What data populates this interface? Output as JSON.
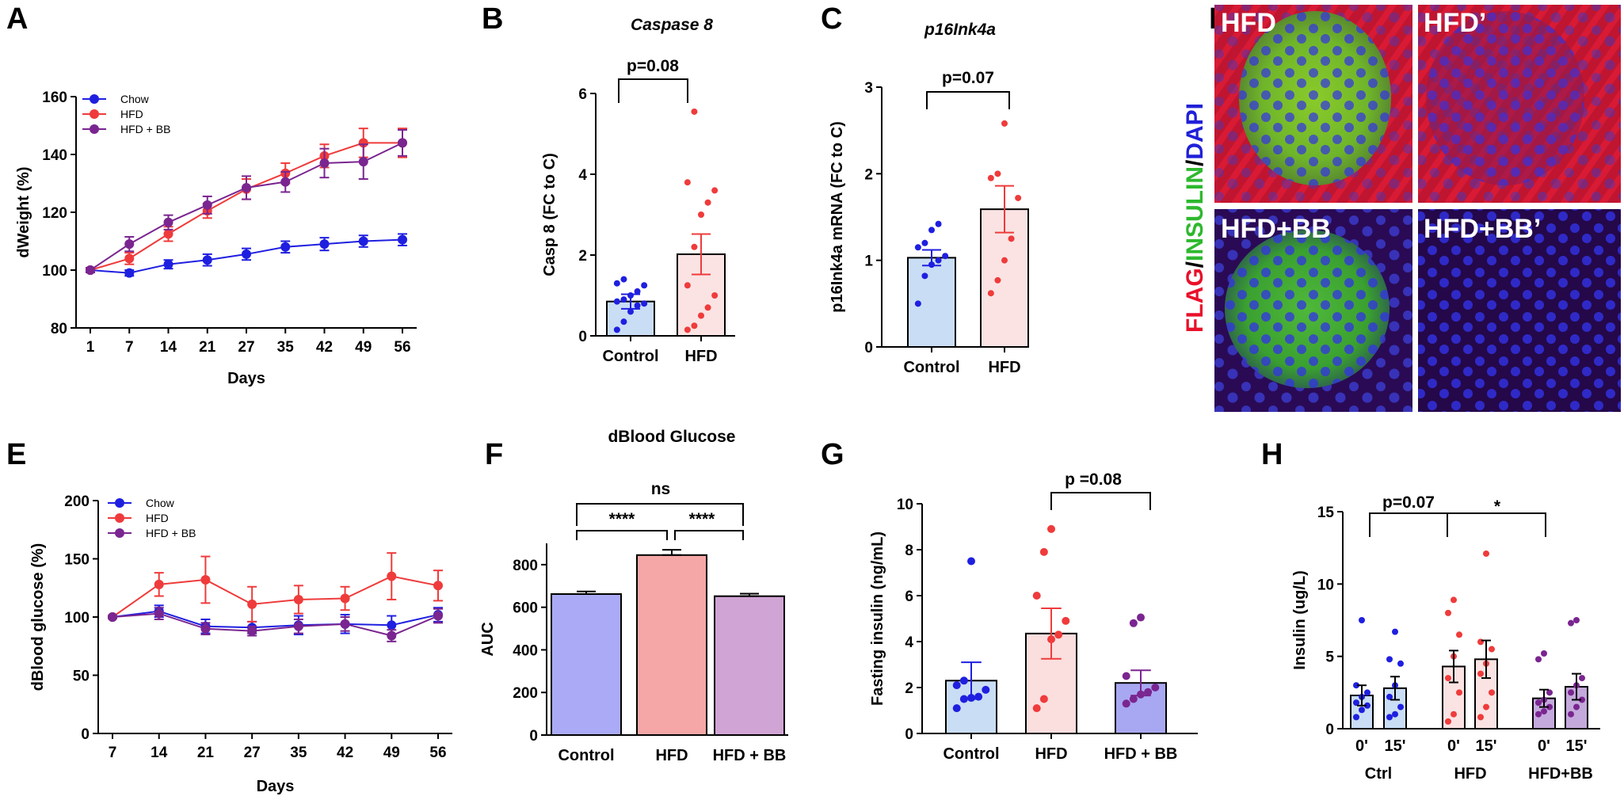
{
  "colors": {
    "chow": "#1f1fe0",
    "hfd": "#ef3b3b",
    "hfdbb": "#7a2590",
    "flag": "#e8102a",
    "insulin": "#2eb82e",
    "dapi": "#2020d8"
  },
  "panels": {
    "A": "A",
    "B": "B",
    "C": "C",
    "D": "D",
    "E": "E",
    "F": "F",
    "G": "G",
    "H": "H"
  },
  "chart_data": [
    {
      "id": "A",
      "type": "line",
      "title": "",
      "xlabel": "Days",
      "ylabel": "dWeight (%)",
      "categories": [
        "1",
        "7",
        "14",
        "21",
        "27",
        "35",
        "42",
        "49",
        "56"
      ],
      "ylim": [
        80,
        160
      ],
      "yticks": [
        "80",
        "100",
        "120",
        "140",
        "160"
      ],
      "legend_position": "top-left",
      "series": [
        {
          "name": "Chow",
          "values": [
            100,
            99,
            102,
            103.5,
            105.5,
            108,
            109,
            110,
            110.5
          ],
          "err": [
            0.8,
            1,
            1.5,
            2,
            2,
            2,
            2.2,
            2,
            2
          ]
        },
        {
          "name": "HFD",
          "values": [
            100,
            104,
            112.5,
            120.5,
            128,
            133.5,
            139.5,
            144,
            144
          ],
          "err": [
            0.8,
            2,
            2.5,
            2.5,
            3.5,
            3.5,
            4,
            5,
            5
          ]
        },
        {
          "name": "HFD + BB",
          "values": [
            100,
            109,
            116.5,
            122.5,
            128.5,
            130.5,
            137,
            137.5,
            144
          ],
          "err": [
            0.8,
            2.5,
            2.5,
            3,
            4,
            3.5,
            5,
            6,
            4.5
          ]
        }
      ]
    },
    {
      "id": "B",
      "type": "bar",
      "title": "Caspase 8",
      "xlabel": "",
      "ylabel": "Casp 8 (FC to C)",
      "categories": [
        "Control",
        "HFD"
      ],
      "ylim": [
        0,
        6
      ],
      "yticks": [
        "0",
        "2",
        "4",
        "6"
      ],
      "values": [
        0.85,
        2.02
      ],
      "err": [
        0.18,
        0.5
      ],
      "points": [
        [
          0.15,
          0.35,
          0.6,
          0.75,
          0.8,
          0.85,
          0.9,
          1.0,
          1.1,
          1.25,
          1.3,
          1.4
        ],
        [
          0.15,
          0.25,
          0.5,
          0.7,
          1.0,
          1.25,
          2.2,
          3.0,
          3.3,
          3.6,
          3.8,
          5.55
        ]
      ],
      "annotation": "p=0.08"
    },
    {
      "id": "C",
      "type": "bar",
      "title": "p16Ink4a",
      "xlabel": "",
      "ylabel": "p16Ink4a mRNA (FC to C)",
      "categories": [
        "Control",
        "HFD"
      ],
      "ylim": [
        0,
        3
      ],
      "yticks": [
        "0",
        "1",
        "2",
        "3"
      ],
      "values": [
        1.03,
        1.59
      ],
      "err": [
        0.09,
        0.27
      ],
      "points": [
        [
          0.5,
          0.82,
          0.95,
          1.0,
          1.05,
          1.15,
          1.2,
          1.35,
          1.42
        ],
        [
          0.62,
          0.77,
          1.0,
          1.25,
          1.72,
          1.95,
          2.0,
          2.58
        ]
      ],
      "annotation": "p=0.07"
    },
    {
      "id": "E",
      "type": "line",
      "title": "",
      "xlabel": "Days",
      "ylabel": "dBlood glucose (%)",
      "categories": [
        "7",
        "14",
        "21",
        "27",
        "35",
        "42",
        "49",
        "56"
      ],
      "ylim": [
        0,
        200
      ],
      "yticks": [
        "0",
        "50",
        "100",
        "150",
        "200"
      ],
      "legend_position": "top-left",
      "series": [
        {
          "name": "Chow",
          "values": [
            100,
            105,
            92,
            91,
            93,
            94,
            93,
            102
          ],
          "err": [
            1,
            5,
            6,
            5,
            8,
            8,
            8,
            6
          ]
        },
        {
          "name": "HFD",
          "values": [
            100,
            128,
            132,
            111,
            115,
            116,
            135,
            127
          ],
          "err": [
            1,
            10,
            20,
            15,
            12,
            10,
            20,
            13
          ]
        },
        {
          "name": "HFD + BB",
          "values": [
            100,
            103,
            90,
            88,
            92,
            94,
            84,
            101
          ],
          "err": [
            1,
            5,
            5,
            4,
            6,
            6,
            5,
            6
          ]
        }
      ]
    },
    {
      "id": "F",
      "type": "bar",
      "title": "dBlood Glucose",
      "xlabel": "",
      "ylabel": "AUC",
      "categories": [
        "Control",
        "HFD",
        "HFD + BB"
      ],
      "ylim": [
        0,
        900
      ],
      "yticks": [
        "0",
        "200",
        "400",
        "600",
        "800"
      ],
      "values": [
        662,
        845,
        652
      ],
      "err": [
        12,
        25,
        12
      ],
      "annotations": [
        "ns",
        "****",
        "****"
      ]
    },
    {
      "id": "G",
      "type": "bar",
      "title": "",
      "xlabel": "",
      "ylabel": "Fasting insulin (ng/mL)",
      "categories": [
        "Control",
        "HFD",
        "HFD + BB"
      ],
      "ylim": [
        0,
        10
      ],
      "yticks": [
        "0",
        "2",
        "4",
        "6",
        "8",
        "10"
      ],
      "values": [
        2.3,
        4.35,
        2.2
      ],
      "err": [
        0.8,
        1.1,
        0.55
      ],
      "points": [
        [
          1.1,
          1.5,
          1.55,
          1.6,
          1.9,
          2.1,
          2.3,
          7.5
        ],
        [
          1.1,
          1.5,
          4.1,
          4.3,
          4.9,
          6.0,
          7.9,
          8.9
        ],
        [
          1.3,
          1.5,
          1.7,
          1.8,
          2.0,
          2.5,
          4.8,
          5.05
        ]
      ],
      "annotation": "p =0.08"
    },
    {
      "id": "H",
      "type": "bar",
      "title": "",
      "xlabel": "",
      "ylabel": "Insulin (ug/L)",
      "categories": [
        "0'",
        "15'",
        "0'",
        "15'",
        "0'",
        "15'"
      ],
      "groups": [
        "Ctrl",
        "HFD",
        "HFD+BB"
      ],
      "ylim": [
        0,
        15
      ],
      "yticks": [
        "0",
        "5",
        "10",
        "15"
      ],
      "values": [
        2.3,
        2.8,
        4.3,
        4.8,
        2.1,
        2.9
      ],
      "err": [
        0.7,
        0.8,
        1.1,
        1.3,
        0.6,
        0.9
      ],
      "points": [
        [
          0.8,
          1.3,
          1.6,
          1.8,
          2.2,
          2.5,
          3.0,
          7.5
        ],
        [
          0.8,
          1.0,
          1.5,
          2.2,
          3.0,
          4.5,
          4.8,
          6.7
        ],
        [
          0.5,
          1.0,
          2.5,
          3.5,
          5.0,
          6.5,
          8.0,
          8.9
        ],
        [
          0.8,
          1.5,
          2.5,
          3.8,
          4.5,
          5.5,
          6.0,
          12.1
        ],
        [
          1.0,
          1.2,
          1.5,
          1.8,
          2.0,
          2.5,
          4.8,
          5.2
        ],
        [
          1.0,
          1.5,
          2.0,
          2.5,
          3.0,
          3.5,
          7.3,
          7.5
        ]
      ],
      "annotations": [
        "p=0.07",
        "*"
      ]
    }
  ],
  "microscopy": {
    "tiles": [
      "HFD",
      "HFD’",
      "HFD+BB",
      "HFD+BB’"
    ],
    "side_label": {
      "flag": "FLAG",
      "slash1": "/",
      "insulin": "INSULIN",
      "slash2": "/",
      "dapi": "DAPI"
    }
  }
}
